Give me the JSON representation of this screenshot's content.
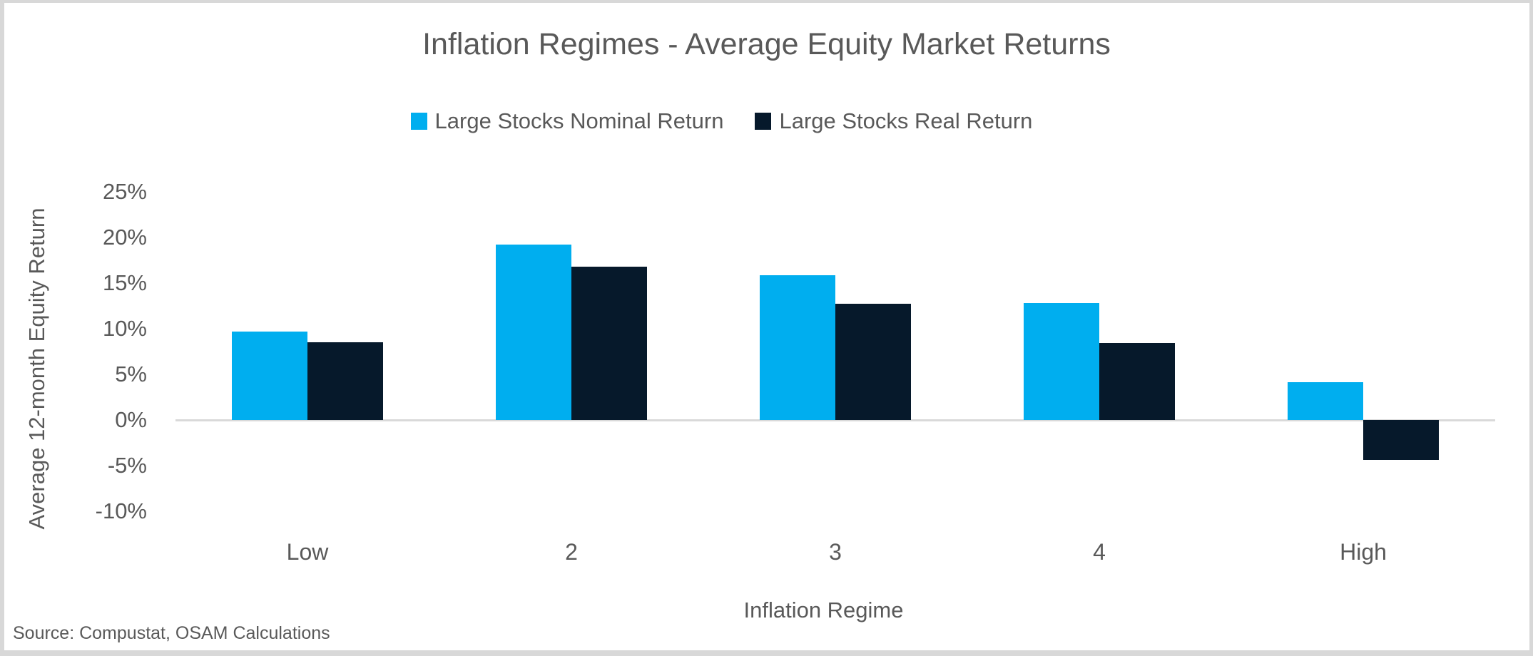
{
  "chart_data": {
    "type": "bar",
    "title": "Inflation Regimes - Average Equity Market Returns",
    "xlabel": "Inflation Regime",
    "ylabel": "Average 12-month Equity Return",
    "categories": [
      "Low",
      "2",
      "3",
      "4",
      "High"
    ],
    "series": [
      {
        "name": "Large Stocks Nominal Return",
        "color": "#00AEEF",
        "values": [
          9.7,
          19.2,
          15.8,
          12.8,
          4.1
        ]
      },
      {
        "name": "Large Stocks Real Return",
        "color": "#06192B",
        "values": [
          8.5,
          16.8,
          12.7,
          8.4,
          -4.4
        ]
      }
    ],
    "yticks": [
      25,
      20,
      15,
      10,
      5,
      0,
      -5,
      -10
    ],
    "ytick_suffix": "%",
    "ylim": [
      -12.5,
      27.5
    ],
    "grid": false,
    "legend_position": "top"
  },
  "footer": {
    "source": "Source: Compustat, OSAM Calculations"
  },
  "colors": {
    "text": "#595959",
    "axis_line": "#d9d9d9",
    "frame": "#d8d8d8",
    "background": "#ffffff"
  }
}
